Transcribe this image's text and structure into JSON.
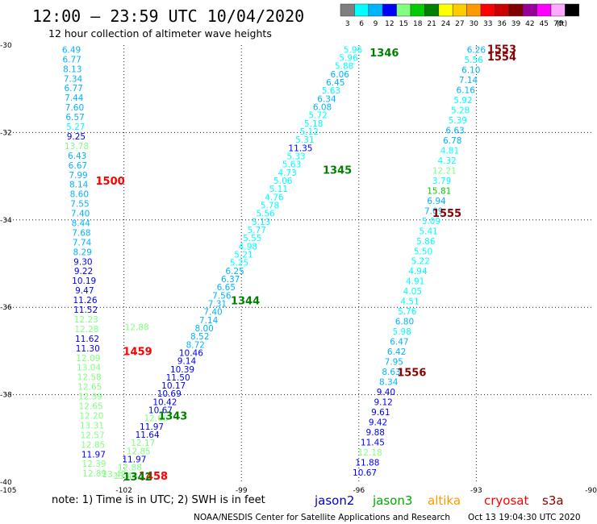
{
  "header": {
    "title": "12:00 – 23:59 UTC 10/04/2020",
    "subtitle": "12 hour collection of altimeter wave heights"
  },
  "legend_scale": {
    "unit": "(ft)",
    "bins": [
      {
        "label": "3",
        "color": "#7f7f7f"
      },
      {
        "label": "6",
        "color": "#00ffff"
      },
      {
        "label": "9",
        "color": "#00b3ff"
      },
      {
        "label": "12",
        "color": "#0000ff"
      },
      {
        "label": "15",
        "color": "#80ff80"
      },
      {
        "label": "18",
        "color": "#00cc00"
      },
      {
        "label": "21",
        "color": "#008000"
      },
      {
        "label": "24",
        "color": "#ffff00"
      },
      {
        "label": "27",
        "color": "#ffcc00"
      },
      {
        "label": "30",
        "color": "#ff9900"
      },
      {
        "label": "33",
        "color": "#ff0000"
      },
      {
        "label": "36",
        "color": "#cc0000"
      },
      {
        "label": "39",
        "color": "#800000"
      },
      {
        "label": "42",
        "color": "#990099"
      },
      {
        "label": "45",
        "color": "#ff00ff"
      },
      {
        "label": "70",
        "color": "#ffaaff"
      },
      {
        "label": "",
        "color": "#000000"
      }
    ]
  },
  "footer": {
    "note": "note:  1) Time is in UTC; 2) SWH is in feet",
    "satellites": [
      {
        "name": "jason2",
        "color": "#0000cc"
      },
      {
        "name": "jason3",
        "color": "#00aa00"
      },
      {
        "name": "altika",
        "color": "#ff9900"
      },
      {
        "name": "cryosat",
        "color": "#ff0000"
      },
      {
        "name": "s3a",
        "color": "#880000"
      }
    ],
    "credit": "NOAA/NESDIS Center for Satellite Applications and Research",
    "timestamp": "Oct 13 19:04:30 UTC 2020"
  },
  "chart_data": {
    "type": "scatter",
    "xlim": [
      -105,
      -90
    ],
    "ylim": [
      -40,
      -30
    ],
    "x_ticks": [
      "-105",
      "-102",
      "-99",
      "-96",
      "-93",
      "-90"
    ],
    "y_ticks": [
      "-30",
      "-32",
      "-34",
      "-36",
      "-38",
      "-40"
    ],
    "grid": true,
    "tracks": [
      {
        "name": "track-1500",
        "x_start": -103.34,
        "y_start": -30.1,
        "x_end": -102.75,
        "y_end": -39.8,
        "values": [
          {
            "v": "6.49",
            "c": "#00b3ff"
          },
          {
            "v": "6.77",
            "c": "#00b3ff"
          },
          {
            "v": "8.13",
            "c": "#00b3ff"
          },
          {
            "v": "7.34",
            "c": "#00b3ff"
          },
          {
            "v": "6.77",
            "c": "#00b3ff"
          },
          {
            "v": "7.44",
            "c": "#00b3ff"
          },
          {
            "v": "7.60",
            "c": "#00b3ff"
          },
          {
            "v": "6.57",
            "c": "#00b3ff"
          },
          {
            "v": "5.27",
            "c": "#00ffff"
          },
          {
            "v": "9.25",
            "c": "#0000ff"
          },
          {
            "v": "13.78",
            "c": "#80ff80"
          },
          {
            "v": "6.43",
            "c": "#00b3ff"
          },
          {
            "v": "6.67",
            "c": "#00b3ff"
          },
          {
            "v": "7.99",
            "c": "#00b3ff"
          },
          {
            "v": "8.14",
            "c": "#00b3ff"
          },
          {
            "v": "8.60",
            "c": "#00b3ff"
          },
          {
            "v": "7.55",
            "c": "#00b3ff"
          },
          {
            "v": "7.40",
            "c": "#00b3ff"
          },
          {
            "v": "8.44",
            "c": "#00b3ff"
          },
          {
            "v": "7.68",
            "c": "#00b3ff"
          },
          {
            "v": "7.74",
            "c": "#00b3ff"
          },
          {
            "v": "8.29",
            "c": "#00b3ff"
          },
          {
            "v": "9.30",
            "c": "#0000ff"
          },
          {
            "v": "9.22",
            "c": "#0000ff"
          },
          {
            "v": "10.19",
            "c": "#0000ff"
          },
          {
            "v": "9.47",
            "c": "#0000ff"
          },
          {
            "v": "11.26",
            "c": "#0000ff"
          },
          {
            "v": "11.52",
            "c": "#0000ff"
          },
          {
            "v": "12.23",
            "c": "#80ff80"
          },
          {
            "v": "12.28",
            "c": "#80ff80"
          },
          {
            "v": "11.62",
            "c": "#0000ff"
          },
          {
            "v": "11.30",
            "c": "#0000ff"
          },
          {
            "v": "12.09",
            "c": "#80ff80"
          },
          {
            "v": "13.04",
            "c": "#80ff80"
          },
          {
            "v": "12.58",
            "c": "#80ff80"
          },
          {
            "v": "12.65",
            "c": "#80ff80"
          },
          {
            "v": "12.39",
            "c": "#80ff80"
          },
          {
            "v": "12.65",
            "c": "#80ff80"
          },
          {
            "v": "12.20",
            "c": "#80ff80"
          },
          {
            "v": "13.31",
            "c": "#80ff80"
          },
          {
            "v": "12.57",
            "c": "#80ff80"
          },
          {
            "v": "12.85",
            "c": "#80ff80"
          },
          {
            "v": "11.97",
            "c": "#0000ff"
          },
          {
            "v": "12.39",
            "c": "#80ff80"
          },
          {
            "v": "12.89",
            "c": "#80ff80"
          }
        ]
      },
      {
        "name": "track-1458",
        "x_start": -101.67,
        "y_start": -36.45,
        "x_end": -102.25,
        "y_end": -39.82,
        "values": [
          {
            "v": "12.88",
            "c": "#80ff80"
          },
          {
            "v": "13.42",
            "c": "#80ff80"
          }
        ]
      },
      {
        "name": "track-1345",
        "x_start": -96.15,
        "y_start": -30.1,
        "x_end": -101.96,
        "y_end": -39.85,
        "values": [
          {
            "v": "5.96",
            "c": "#00ffff"
          },
          {
            "v": "5.96",
            "c": "#00ffff"
          },
          {
            "v": "5.88",
            "c": "#00ffff"
          },
          {
            "v": "6.06",
            "c": "#00b3ff"
          },
          {
            "v": "6.45",
            "c": "#00b3ff"
          },
          {
            "v": "5.63",
            "c": "#00ffff"
          },
          {
            "v": "6.34",
            "c": "#00b3ff"
          },
          {
            "v": "6.08",
            "c": "#00b3ff"
          },
          {
            "v": "5.72",
            "c": "#00ffff"
          },
          {
            "v": "5.18",
            "c": "#00ffff"
          },
          {
            "v": "5.12",
            "c": "#00ffff"
          },
          {
            "v": "5.31",
            "c": "#00ffff"
          },
          {
            "v": "11.35",
            "c": "#0000ff"
          },
          {
            "v": "5.33",
            "c": "#00ffff"
          },
          {
            "v": "5.63",
            "c": "#00ffff"
          },
          {
            "v": "4.73",
            "c": "#00ffff"
          },
          {
            "v": "5.06",
            "c": "#00ffff"
          },
          {
            "v": "5.11",
            "c": "#00ffff"
          },
          {
            "v": "4.76",
            "c": "#00ffff"
          },
          {
            "v": "5.78",
            "c": "#00ffff"
          },
          {
            "v": "5.56",
            "c": "#00ffff"
          },
          {
            "v": "5.13",
            "c": "#00ffff"
          },
          {
            "v": "5.77",
            "c": "#00ffff"
          },
          {
            "v": "5.55",
            "c": "#00ffff"
          },
          {
            "v": "4.98",
            "c": "#00ffff"
          },
          {
            "v": "5.21",
            "c": "#00ffff"
          },
          {
            "v": "5.25",
            "c": "#00ffff"
          },
          {
            "v": "6.25",
            "c": "#00b3ff"
          },
          {
            "v": "6.37",
            "c": "#00b3ff"
          },
          {
            "v": "6.65",
            "c": "#00b3ff"
          },
          {
            "v": "7.56",
            "c": "#00b3ff"
          },
          {
            "v": "7.31",
            "c": "#00b3ff"
          },
          {
            "v": "7.40",
            "c": "#00b3ff"
          },
          {
            "v": "7.14",
            "c": "#00b3ff"
          },
          {
            "v": "8.00",
            "c": "#00b3ff"
          },
          {
            "v": "8.52",
            "c": "#00b3ff"
          },
          {
            "v": "8.72",
            "c": "#00b3ff"
          },
          {
            "v": "10.46",
            "c": "#0000ff"
          },
          {
            "v": "9.14",
            "c": "#0000ff"
          },
          {
            "v": "10.39",
            "c": "#0000ff"
          },
          {
            "v": "11.50",
            "c": "#0000ff"
          },
          {
            "v": "10.17",
            "c": "#0000ff"
          },
          {
            "v": "10.69",
            "c": "#0000ff"
          },
          {
            "v": "10.42",
            "c": "#0000ff"
          },
          {
            "v": "10.67",
            "c": "#0000ff"
          },
          {
            "v": "12.66",
            "c": "#80ff80"
          },
          {
            "v": "11.97",
            "c": "#0000ff"
          },
          {
            "v": "11.64",
            "c": "#0000ff"
          },
          {
            "v": "12.17",
            "c": "#80ff80"
          },
          {
            "v": "12.85",
            "c": "#80ff80"
          },
          {
            "v": "11.97",
            "c": "#0000ff"
          },
          {
            "v": "12.88",
            "c": "#80ff80"
          },
          {
            "v": "13.48",
            "c": "#80ff80"
          }
        ]
      },
      {
        "name": "track-1556",
        "x_start": -93.0,
        "y_start": -30.1,
        "x_end": -95.85,
        "y_end": -39.78,
        "values": [
          {
            "v": "6.26",
            "c": "#00b3ff"
          },
          {
            "v": "5.56",
            "c": "#00ffff"
          },
          {
            "v": "6.10",
            "c": "#00b3ff"
          },
          {
            "v": "7.14",
            "c": "#00b3ff"
          },
          {
            "v": "6.16",
            "c": "#00b3ff"
          },
          {
            "v": "5.92",
            "c": "#00ffff"
          },
          {
            "v": "5.28",
            "c": "#00ffff"
          },
          {
            "v": "5.39",
            "c": "#00ffff"
          },
          {
            "v": "6.63",
            "c": "#00b3ff"
          },
          {
            "v": "6.78",
            "c": "#00b3ff"
          },
          {
            "v": "4.81",
            "c": "#00ffff"
          },
          {
            "v": "4.32",
            "c": "#00ffff"
          },
          {
            "v": "12.21",
            "c": "#80ff80"
          },
          {
            "v": "3.79",
            "c": "#00ffff"
          },
          {
            "v": "15.81",
            "c": "#00cc00"
          },
          {
            "v": "6.94",
            "c": "#00b3ff"
          },
          {
            "v": "7.09",
            "c": "#00b3ff"
          },
          {
            "v": "5.09",
            "c": "#00ffff"
          },
          {
            "v": "5.41",
            "c": "#00ffff"
          },
          {
            "v": "5.86",
            "c": "#00ffff"
          },
          {
            "v": "5.50",
            "c": "#00ffff"
          },
          {
            "v": "5.22",
            "c": "#00ffff"
          },
          {
            "v": "4.94",
            "c": "#00ffff"
          },
          {
            "v": "4.91",
            "c": "#00ffff"
          },
          {
            "v": "4.05",
            "c": "#00ffff"
          },
          {
            "v": "4.51",
            "c": "#00ffff"
          },
          {
            "v": "5.76",
            "c": "#00ffff"
          },
          {
            "v": "6.80",
            "c": "#00b3ff"
          },
          {
            "v": "5.98",
            "c": "#00ffff"
          },
          {
            "v": "6.47",
            "c": "#00b3ff"
          },
          {
            "v": "6.42",
            "c": "#00b3ff"
          },
          {
            "v": "7.95",
            "c": "#00b3ff"
          },
          {
            "v": "8.63",
            "c": "#00b3ff"
          },
          {
            "v": "8.34",
            "c": "#00b3ff"
          },
          {
            "v": "9.40",
            "c": "#0000ff"
          },
          {
            "v": "9.12",
            "c": "#0000ff"
          },
          {
            "v": "9.61",
            "c": "#0000ff"
          },
          {
            "v": "9.42",
            "c": "#0000ff"
          },
          {
            "v": "9.88",
            "c": "#0000ff"
          },
          {
            "v": "11.45",
            "c": "#0000ff"
          },
          {
            "v": "12.18",
            "c": "#80ff80"
          },
          {
            "v": "11.88",
            "c": "#0000ff"
          },
          {
            "v": "10.67",
            "c": "#0000ff"
          }
        ]
      }
    ],
    "time_labels": [
      {
        "text": "1500",
        "x": -102.35,
        "y": -33.1,
        "color": "#ff0000"
      },
      {
        "text": "1459",
        "x": -101.65,
        "y": -37.0,
        "color": "#ff0000"
      },
      {
        "text": "1458",
        "x": -101.25,
        "y": -39.85,
        "color": "#ff0000"
      },
      {
        "text": "1342",
        "x": -101.65,
        "y": -39.87,
        "color": "#008000"
      },
      {
        "text": "1343",
        "x": -100.75,
        "y": -38.48,
        "color": "#008000"
      },
      {
        "text": "1344",
        "x": -98.9,
        "y": -35.84,
        "color": "#008000"
      },
      {
        "text": "1345",
        "x": -96.55,
        "y": -32.85,
        "color": "#008000"
      },
      {
        "text": "1346",
        "x": -95.35,
        "y": -30.17,
        "color": "#008000"
      },
      {
        "text": "1553",
        "x": -92.35,
        "y": -30.08,
        "color": "#880000"
      },
      {
        "text": "1554",
        "x": -92.35,
        "y": -30.26,
        "color": "#880000"
      },
      {
        "text": "1555",
        "x": -93.75,
        "y": -33.84,
        "color": "#880000"
      },
      {
        "text": "1556",
        "x": -94.65,
        "y": -37.48,
        "color": "#880000"
      }
    ]
  }
}
